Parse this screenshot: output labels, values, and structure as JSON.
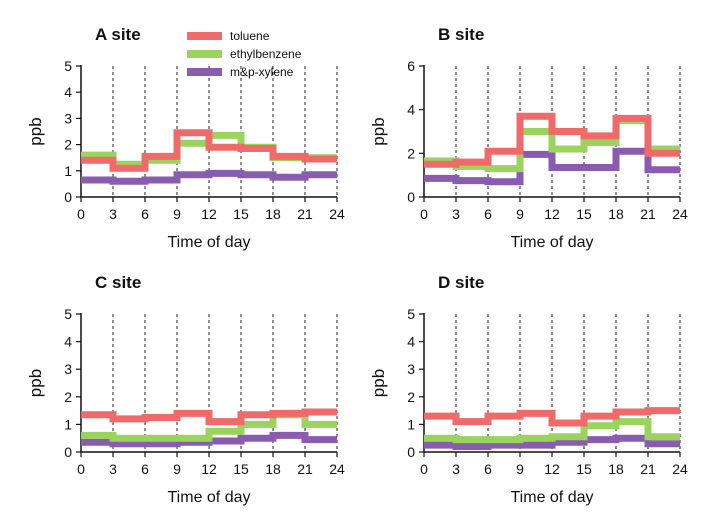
{
  "legend": {
    "items": [
      {
        "label": "toluene",
        "color": "#f06a6a"
      },
      {
        "label": "ethylbenzene",
        "color": "#9ad45e"
      },
      {
        "label": "m&p-xylene",
        "color": "#8a5cb0"
      }
    ]
  },
  "chart_data": [
    {
      "type": "line",
      "step": true,
      "title": "A site",
      "xlabel": "Time of day",
      "ylabel": "ppb",
      "xlim": [
        0,
        24
      ],
      "ylim": [
        0,
        5
      ],
      "xticks": [
        0,
        3,
        6,
        9,
        12,
        15,
        18,
        21,
        24
      ],
      "yticks": [
        0,
        1,
        2,
        3,
        4,
        5
      ],
      "x_bins": [
        0,
        3,
        6,
        9,
        12,
        15,
        18,
        21,
        24
      ],
      "series": [
        {
          "name": "toluene",
          "values": [
            1.4,
            1.1,
            1.55,
            2.45,
            1.9,
            1.85,
            1.55,
            1.45
          ]
        },
        {
          "name": "ethylbenzene",
          "values": [
            1.6,
            1.25,
            1.4,
            2.05,
            2.35,
            1.9,
            1.5,
            1.5
          ]
        },
        {
          "name": "m&p-xylene",
          "values": [
            0.65,
            0.6,
            0.65,
            0.85,
            0.9,
            0.85,
            0.75,
            0.85
          ]
        }
      ]
    },
    {
      "type": "line",
      "step": true,
      "title": "B site",
      "xlabel": "Time of day",
      "ylabel": "ppb",
      "xlim": [
        0,
        24
      ],
      "ylim": [
        0,
        6
      ],
      "xticks": [
        0,
        3,
        6,
        9,
        12,
        15,
        18,
        21,
        24
      ],
      "yticks": [
        0,
        2,
        4,
        6
      ],
      "x_bins": [
        0,
        3,
        6,
        9,
        12,
        15,
        18,
        21,
        24
      ],
      "series": [
        {
          "name": "toluene",
          "values": [
            1.5,
            1.6,
            2.1,
            3.7,
            3.0,
            2.8,
            3.6,
            2.0
          ]
        },
        {
          "name": "ethylbenzene",
          "values": [
            1.65,
            1.4,
            1.3,
            3.0,
            2.2,
            2.5,
            3.5,
            2.2
          ]
        },
        {
          "name": "m&p-xylene",
          "values": [
            0.85,
            0.75,
            0.7,
            1.95,
            1.35,
            1.35,
            2.1,
            1.25
          ]
        }
      ]
    },
    {
      "type": "line",
      "step": true,
      "title": "C site",
      "xlabel": "Time of day",
      "ylabel": "ppb",
      "xlim": [
        0,
        24
      ],
      "ylim": [
        0,
        5
      ],
      "xticks": [
        0,
        3,
        6,
        9,
        12,
        15,
        18,
        21,
        24
      ],
      "yticks": [
        0,
        1,
        2,
        3,
        4,
        5
      ],
      "x_bins": [
        0,
        3,
        6,
        9,
        12,
        15,
        18,
        21,
        24
      ],
      "series": [
        {
          "name": "toluene",
          "values": [
            1.35,
            1.2,
            1.25,
            1.4,
            1.1,
            1.35,
            1.4,
            1.45
          ]
        },
        {
          "name": "ethylbenzene",
          "values": [
            0.6,
            0.5,
            0.5,
            0.5,
            0.75,
            1.0,
            1.35,
            1.0
          ]
        },
        {
          "name": "m&p-xylene",
          "values": [
            0.35,
            0.3,
            0.3,
            0.35,
            0.4,
            0.5,
            0.6,
            0.45
          ]
        }
      ]
    },
    {
      "type": "line",
      "step": true,
      "title": "D site",
      "xlabel": "Time of day",
      "ylabel": "ppb",
      "xlim": [
        0,
        24
      ],
      "ylim": [
        0,
        5
      ],
      "xticks": [
        0,
        3,
        6,
        9,
        12,
        15,
        18,
        21,
        24
      ],
      "yticks": [
        0,
        1,
        2,
        3,
        4,
        5
      ],
      "x_bins": [
        0,
        3,
        6,
        9,
        12,
        15,
        18,
        21,
        24
      ],
      "series": [
        {
          "name": "toluene",
          "values": [
            1.3,
            1.1,
            1.3,
            1.4,
            1.05,
            1.3,
            1.45,
            1.5
          ]
        },
        {
          "name": "ethylbenzene",
          "values": [
            0.5,
            0.45,
            0.45,
            0.5,
            0.55,
            0.95,
            1.1,
            0.55
          ]
        },
        {
          "name": "m&p-xylene",
          "values": [
            0.25,
            0.2,
            0.25,
            0.25,
            0.35,
            0.45,
            0.5,
            0.3
          ]
        }
      ]
    }
  ]
}
